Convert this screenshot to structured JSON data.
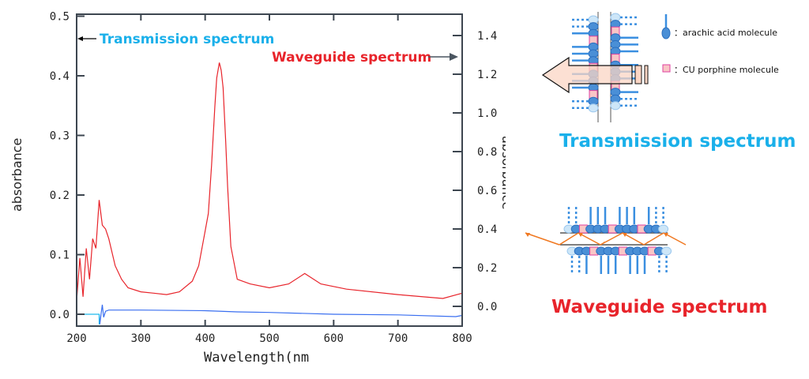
{
  "chart_data": {
    "type": "line",
    "xlabel": "Wavelength(nm",
    "ylabel_left": "absorbance",
    "ylabel_right": "absorbance",
    "xlim": [
      200,
      800
    ],
    "ylim_left": [
      -0.02,
      0.5
    ],
    "ylim_right": [
      -0.1,
      1.5
    ],
    "x_ticks": [
      "200",
      "300",
      "400",
      "500",
      "600",
      "700",
      "800"
    ],
    "y_left_ticks": [
      "0.0",
      "0.1",
      "0.2",
      "0.3",
      "0.4",
      "0.5"
    ],
    "y_right_ticks": [
      "0.0",
      "0.2",
      "0.4",
      "0.6",
      "0.8",
      "1.0",
      "1.2",
      "1.4"
    ],
    "grid": false,
    "annotations": {
      "transmission": "Transmission spectrum",
      "waveguide": "Waveguide spectrum"
    },
    "series": [
      {
        "name": "Waveguide spectrum",
        "axis": "right",
        "color": "#e8242b",
        "x": [
          200,
          205,
          210,
          215,
          220,
          225,
          230,
          235,
          240,
          245,
          250,
          260,
          270,
          280,
          300,
          320,
          340,
          360,
          380,
          390,
          400,
          405,
          410,
          415,
          418,
          422,
          425,
          428,
          432,
          435,
          440,
          450,
          470,
          500,
          530,
          555,
          580,
          620,
          700,
          770,
          800
        ],
        "y": [
          0.03,
          0.25,
          0.05,
          0.3,
          0.14,
          0.35,
          0.3,
          0.55,
          0.42,
          0.4,
          0.35,
          0.21,
          0.14,
          0.096,
          0.075,
          0.068,
          0.061,
          0.075,
          0.13,
          0.21,
          0.39,
          0.48,
          0.73,
          1.03,
          1.18,
          1.26,
          1.22,
          1.13,
          0.85,
          0.62,
          0.31,
          0.14,
          0.116,
          0.096,
          0.116,
          0.17,
          0.116,
          0.089,
          0.061,
          0.041,
          0.068
        ]
      },
      {
        "name": "Transmission spectrum",
        "axis": "left",
        "color": "#3a6ff0",
        "x": [
          235,
          236,
          238,
          240,
          242,
          245,
          250,
          300,
          400,
          450,
          500,
          600,
          700,
          790,
          800
        ],
        "y": [
          0.0,
          -0.017,
          0.0,
          0.016,
          -0.005,
          0.005,
          0.007,
          0.007,
          0.006,
          0.004,
          0.003,
          0.0,
          -0.001,
          -0.004,
          -0.002
        ]
      },
      {
        "axis": "left",
        "color": "#22bbee",
        "x": [
          200,
          235,
          235
        ],
        "y": [
          0.0,
          0.0,
          -0.017
        ]
      }
    ]
  },
  "diagram": {
    "legend_acid": "：arachic acid molecule",
    "legend_porphine": "：CU porphine molecule",
    "title_transmission": "Transmission spectrum",
    "title_waveguide": "Waveguide spectrum",
    "colors": {
      "transmission": "#1ab0ea",
      "waveguide": "#e8242b",
      "molecule": "#3b8fe0",
      "porphine": "#f9c6c6",
      "light": "#f07820"
    }
  }
}
